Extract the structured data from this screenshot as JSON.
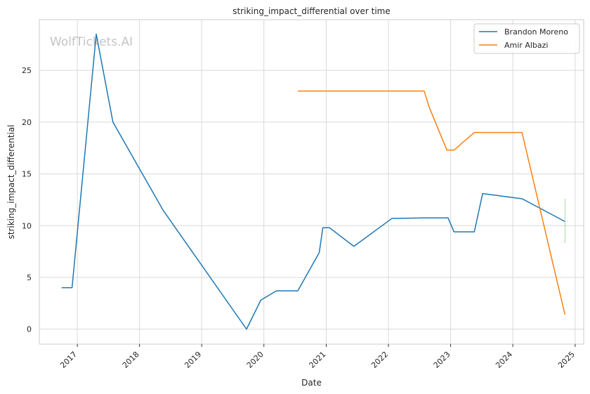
{
  "chart_data": {
    "type": "line",
    "title": "striking_impact_differential over time",
    "xlabel": "Date",
    "ylabel": "striking_impact_differential",
    "xlim": [
      "2016-05-23",
      "2025-02-20"
    ],
    "ylim": [
      -1.45,
      29.9
    ],
    "x_ticks": [
      "2017",
      "2018",
      "2019",
      "2020",
      "2021",
      "2022",
      "2023",
      "2024",
      "2025"
    ],
    "y_ticks": [
      0,
      5,
      10,
      15,
      20,
      25
    ],
    "grid": true,
    "legend_position": "top-right",
    "watermark": "WolfTickets.AI",
    "series": [
      {
        "name": "Brandon Moreno",
        "color": "#1f77b4",
        "points": [
          [
            "2016-10-01",
            4.0
          ],
          [
            "2016-12-01",
            4.0
          ],
          [
            "2017-04-22",
            28.5
          ],
          [
            "2017-07-29",
            20.0
          ],
          [
            "2018-05-19",
            11.5
          ],
          [
            "2019-09-21",
            0.0
          ],
          [
            "2019-12-14",
            2.8
          ],
          [
            "2020-03-14",
            3.7
          ],
          [
            "2020-07-18",
            3.7
          ],
          [
            "2020-11-21",
            7.4
          ],
          [
            "2020-12-12",
            9.8
          ],
          [
            "2021-01-20",
            9.8
          ],
          [
            "2021-06-12",
            8.0
          ],
          [
            "2022-01-22",
            10.7
          ],
          [
            "2022-07-30",
            10.75
          ],
          [
            "2022-12-17",
            10.75
          ],
          [
            "2023-01-21",
            9.4
          ],
          [
            "2023-05-20",
            9.4
          ],
          [
            "2023-07-08",
            13.1
          ],
          [
            "2024-02-24",
            12.6
          ],
          [
            "2024-11-02",
            10.4
          ]
        ]
      },
      {
        "name": "Amir Albazi",
        "color": "#ff7f0e",
        "points": [
          [
            "2020-07-18",
            23.0
          ],
          [
            "2022-07-30",
            23.0
          ],
          [
            "2022-08-27",
            21.5
          ],
          [
            "2022-12-10",
            17.3
          ],
          [
            "2023-01-21",
            17.3
          ],
          [
            "2023-05-20",
            19.0
          ],
          [
            "2024-02-24",
            19.0
          ],
          [
            "2024-11-02",
            1.4
          ]
        ]
      },
      {
        "name": "",
        "color": "#2ca02c",
        "points": [
          [
            "2024-11-02",
            8.3
          ],
          [
            "2024-11-02",
            12.6
          ]
        ]
      }
    ]
  }
}
